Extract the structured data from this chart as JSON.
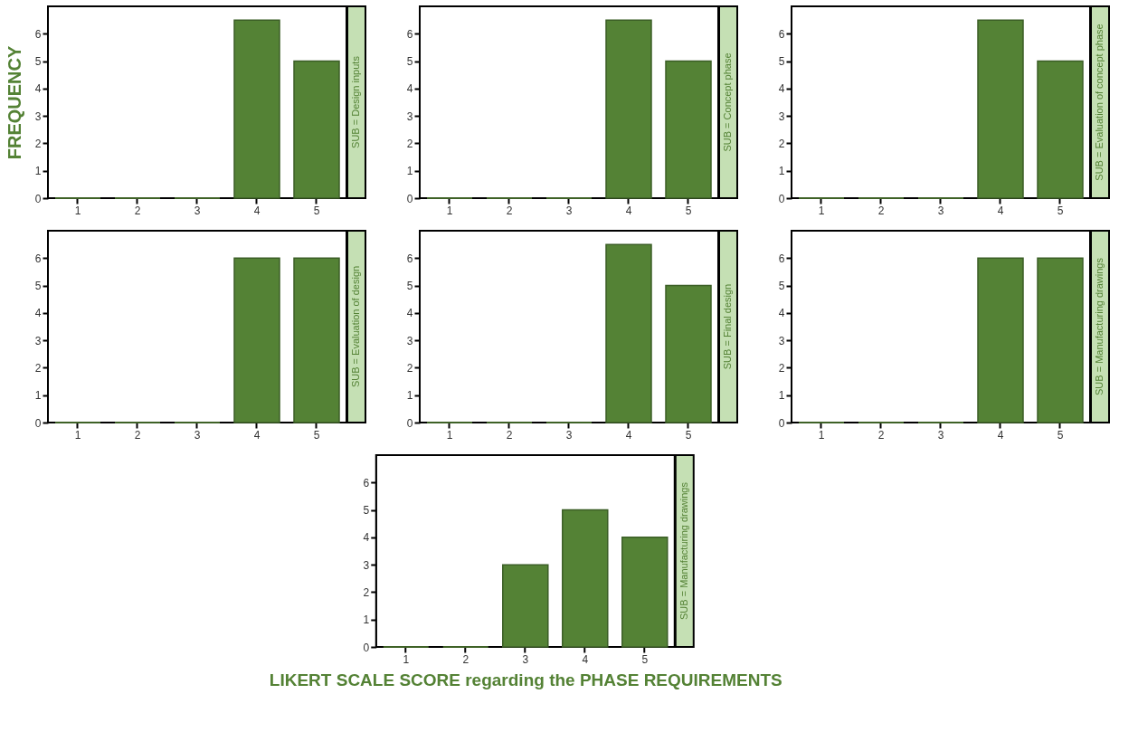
{
  "chart_data": [
    {
      "type": "bar",
      "title": "SUB = Design inputs",
      "ylabel": "FREQUENCY",
      "categories": [
        "1",
        "2",
        "3",
        "4",
        "5"
      ],
      "values": [
        0,
        0,
        0,
        6.5,
        5
      ],
      "color": "#548235",
      "ylim": [
        0,
        7
      ],
      "yticks": [
        0,
        1,
        2,
        3,
        4,
        5,
        6
      ],
      "grid": false
    },
    {
      "type": "bar",
      "title": "SUB = Concept phase",
      "categories": [
        "1",
        "2",
        "3",
        "4",
        "5"
      ],
      "values": [
        0,
        0,
        0,
        6.5,
        5
      ],
      "color": "#548235",
      "ylim": [
        0,
        7
      ],
      "yticks": [
        0,
        1,
        2,
        3,
        4,
        5,
        6
      ],
      "grid": false
    },
    {
      "type": "bar",
      "title": "SUB = Evaluation of concept phase",
      "categories": [
        "1",
        "2",
        "3",
        "4",
        "5"
      ],
      "values": [
        0,
        0,
        0,
        6.5,
        5
      ],
      "color": "#548235",
      "ylim": [
        0,
        7
      ],
      "yticks": [
        0,
        1,
        2,
        3,
        4,
        5,
        6
      ],
      "grid": false
    },
    {
      "type": "bar",
      "title": "SUB = Evaluation of design",
      "categories": [
        "1",
        "2",
        "3",
        "4",
        "5"
      ],
      "values": [
        0,
        0,
        0,
        6,
        6
      ],
      "color": "#548235",
      "ylim": [
        0,
        7
      ],
      "yticks": [
        0,
        1,
        2,
        3,
        4,
        5,
        6
      ],
      "grid": false
    },
    {
      "type": "bar",
      "title": "SUB = Final design",
      "categories": [
        "1",
        "2",
        "3",
        "4",
        "5"
      ],
      "values": [
        0,
        0,
        0,
        6.5,
        5
      ],
      "color": "#548235",
      "ylim": [
        0,
        7
      ],
      "yticks": [
        0,
        1,
        2,
        3,
        4,
        5,
        6
      ],
      "grid": false
    },
    {
      "type": "bar",
      "title": "SUB = Manufacturing drawings",
      "categories": [
        "1",
        "2",
        "3",
        "4",
        "5"
      ],
      "values": [
        0,
        0,
        0,
        6,
        6
      ],
      "color": "#548235",
      "ylim": [
        0,
        7
      ],
      "yticks": [
        0,
        1,
        2,
        3,
        4,
        5,
        6
      ],
      "grid": false
    },
    {
      "type": "bar",
      "title": "SUB = Manufacturing drawings",
      "xlabel": "LIKERT SCALE SCORE regarding the PHASE REQUIREMENTS",
      "categories": [
        "1",
        "2",
        "3",
        "4",
        "5"
      ],
      "values": [
        0,
        0,
        3,
        5,
        4
      ],
      "color": "#548235",
      "ylim": [
        0,
        7
      ],
      "yticks": [
        0,
        1,
        2,
        3,
        4,
        5,
        6
      ],
      "grid": false
    }
  ]
}
